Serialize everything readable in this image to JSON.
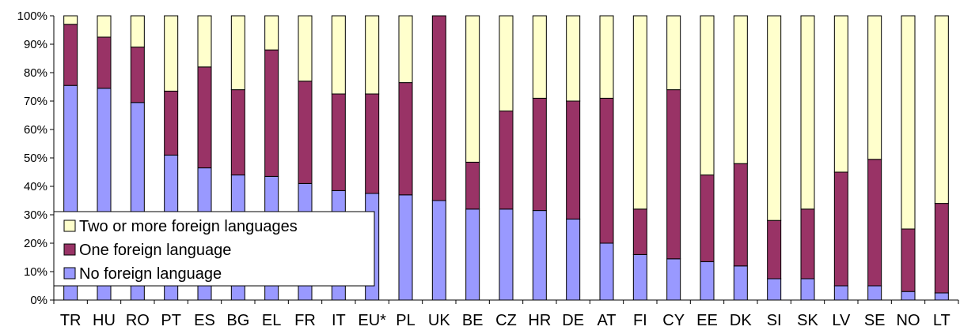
{
  "chart_data": {
    "type": "bar",
    "stacked": true,
    "percent": true,
    "categories": [
      "TR",
      "HU",
      "RO",
      "PT",
      "ES",
      "BG",
      "EL",
      "FR",
      "IT",
      "EU*",
      "PL",
      "UK",
      "BE",
      "CZ",
      "HR",
      "DE",
      "AT",
      "FI",
      "CY",
      "EE",
      "DK",
      "SI",
      "SK",
      "LV",
      "SE",
      "NO",
      "LT"
    ],
    "series": [
      {
        "name": "No foreign language",
        "color": "#9999ff",
        "values": [
          75.5,
          74.5,
          69.5,
          51,
          46.5,
          44,
          43.5,
          41,
          38.5,
          37.5,
          37,
          35,
          32,
          32,
          31.5,
          28.5,
          20,
          16,
          14.5,
          13.5,
          12,
          7.5,
          7.5,
          5,
          5,
          3,
          2.5
        ]
      },
      {
        "name": "One foreign language",
        "color": "#993366",
        "values": [
          21.5,
          18,
          19.5,
          22.5,
          35.5,
          30,
          44.5,
          36,
          34,
          35,
          39.5,
          65,
          16.5,
          34.5,
          39.5,
          41.5,
          51,
          16,
          59.5,
          30.5,
          36,
          20.5,
          24.5,
          40,
          44.5,
          22,
          31.5
        ]
      },
      {
        "name": "Two or more foreign languages",
        "color": "#ffffcc",
        "values": [
          3,
          7.5,
          11,
          26.5,
          18,
          26,
          12,
          23,
          27.5,
          27.5,
          23.5,
          0,
          51.5,
          33.5,
          29,
          30,
          29,
          68,
          26,
          56,
          52,
          72,
          68,
          55,
          50.5,
          75,
          66
        ]
      }
    ],
    "y_ticks": [
      "0%",
      "10%",
      "20%",
      "30%",
      "40%",
      "50%",
      "60%",
      "70%",
      "80%",
      "90%",
      "100%"
    ],
    "ylim": [
      0,
      100
    ],
    "legend": {
      "position": "lower-left",
      "entries": [
        "Two or more foreign languages",
        "One foreign language",
        "No foreign language"
      ]
    },
    "grid": false
  }
}
